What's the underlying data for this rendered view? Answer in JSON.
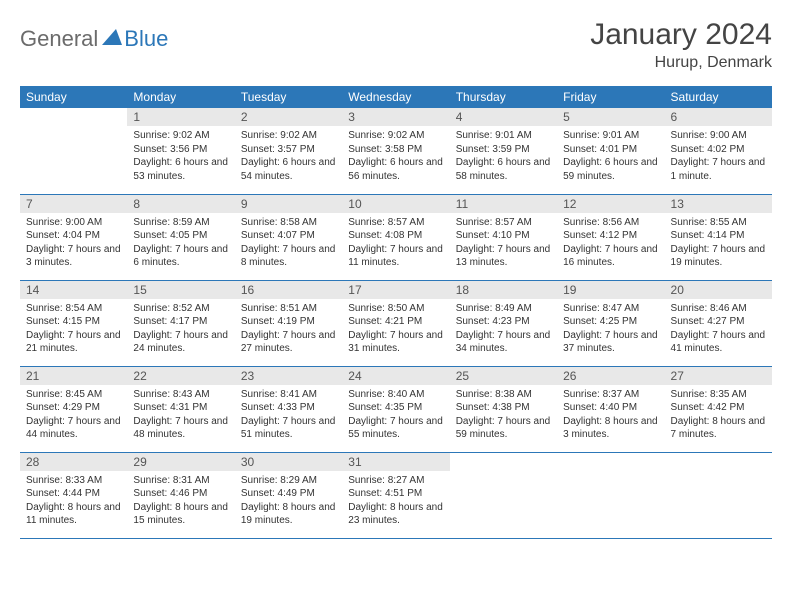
{
  "logo": {
    "text1": "General",
    "text2": "Blue"
  },
  "title": "January 2024",
  "location": "Hurup, Denmark",
  "colors": {
    "header_bg": "#2c77b8",
    "header_fg": "#ffffff",
    "daynum_bg": "#e8e8e8",
    "border": "#2c77b8",
    "logo_gray": "#6b6b6b",
    "logo_blue": "#2c77b8"
  },
  "weekdays": [
    "Sunday",
    "Monday",
    "Tuesday",
    "Wednesday",
    "Thursday",
    "Friday",
    "Saturday"
  ],
  "weeks": [
    [
      null,
      {
        "n": "1",
        "sr": "Sunrise: 9:02 AM",
        "ss": "Sunset: 3:56 PM",
        "dl": "Daylight: 6 hours and 53 minutes."
      },
      {
        "n": "2",
        "sr": "Sunrise: 9:02 AM",
        "ss": "Sunset: 3:57 PM",
        "dl": "Daylight: 6 hours and 54 minutes."
      },
      {
        "n": "3",
        "sr": "Sunrise: 9:02 AM",
        "ss": "Sunset: 3:58 PM",
        "dl": "Daylight: 6 hours and 56 minutes."
      },
      {
        "n": "4",
        "sr": "Sunrise: 9:01 AM",
        "ss": "Sunset: 3:59 PM",
        "dl": "Daylight: 6 hours and 58 minutes."
      },
      {
        "n": "5",
        "sr": "Sunrise: 9:01 AM",
        "ss": "Sunset: 4:01 PM",
        "dl": "Daylight: 6 hours and 59 minutes."
      },
      {
        "n": "6",
        "sr": "Sunrise: 9:00 AM",
        "ss": "Sunset: 4:02 PM",
        "dl": "Daylight: 7 hours and 1 minute."
      }
    ],
    [
      {
        "n": "7",
        "sr": "Sunrise: 9:00 AM",
        "ss": "Sunset: 4:04 PM",
        "dl": "Daylight: 7 hours and 3 minutes."
      },
      {
        "n": "8",
        "sr": "Sunrise: 8:59 AM",
        "ss": "Sunset: 4:05 PM",
        "dl": "Daylight: 7 hours and 6 minutes."
      },
      {
        "n": "9",
        "sr": "Sunrise: 8:58 AM",
        "ss": "Sunset: 4:07 PM",
        "dl": "Daylight: 7 hours and 8 minutes."
      },
      {
        "n": "10",
        "sr": "Sunrise: 8:57 AM",
        "ss": "Sunset: 4:08 PM",
        "dl": "Daylight: 7 hours and 11 minutes."
      },
      {
        "n": "11",
        "sr": "Sunrise: 8:57 AM",
        "ss": "Sunset: 4:10 PM",
        "dl": "Daylight: 7 hours and 13 minutes."
      },
      {
        "n": "12",
        "sr": "Sunrise: 8:56 AM",
        "ss": "Sunset: 4:12 PM",
        "dl": "Daylight: 7 hours and 16 minutes."
      },
      {
        "n": "13",
        "sr": "Sunrise: 8:55 AM",
        "ss": "Sunset: 4:14 PM",
        "dl": "Daylight: 7 hours and 19 minutes."
      }
    ],
    [
      {
        "n": "14",
        "sr": "Sunrise: 8:54 AM",
        "ss": "Sunset: 4:15 PM",
        "dl": "Daylight: 7 hours and 21 minutes."
      },
      {
        "n": "15",
        "sr": "Sunrise: 8:52 AM",
        "ss": "Sunset: 4:17 PM",
        "dl": "Daylight: 7 hours and 24 minutes."
      },
      {
        "n": "16",
        "sr": "Sunrise: 8:51 AM",
        "ss": "Sunset: 4:19 PM",
        "dl": "Daylight: 7 hours and 27 minutes."
      },
      {
        "n": "17",
        "sr": "Sunrise: 8:50 AM",
        "ss": "Sunset: 4:21 PM",
        "dl": "Daylight: 7 hours and 31 minutes."
      },
      {
        "n": "18",
        "sr": "Sunrise: 8:49 AM",
        "ss": "Sunset: 4:23 PM",
        "dl": "Daylight: 7 hours and 34 minutes."
      },
      {
        "n": "19",
        "sr": "Sunrise: 8:47 AM",
        "ss": "Sunset: 4:25 PM",
        "dl": "Daylight: 7 hours and 37 minutes."
      },
      {
        "n": "20",
        "sr": "Sunrise: 8:46 AM",
        "ss": "Sunset: 4:27 PM",
        "dl": "Daylight: 7 hours and 41 minutes."
      }
    ],
    [
      {
        "n": "21",
        "sr": "Sunrise: 8:45 AM",
        "ss": "Sunset: 4:29 PM",
        "dl": "Daylight: 7 hours and 44 minutes."
      },
      {
        "n": "22",
        "sr": "Sunrise: 8:43 AM",
        "ss": "Sunset: 4:31 PM",
        "dl": "Daylight: 7 hours and 48 minutes."
      },
      {
        "n": "23",
        "sr": "Sunrise: 8:41 AM",
        "ss": "Sunset: 4:33 PM",
        "dl": "Daylight: 7 hours and 51 minutes."
      },
      {
        "n": "24",
        "sr": "Sunrise: 8:40 AM",
        "ss": "Sunset: 4:35 PM",
        "dl": "Daylight: 7 hours and 55 minutes."
      },
      {
        "n": "25",
        "sr": "Sunrise: 8:38 AM",
        "ss": "Sunset: 4:38 PM",
        "dl": "Daylight: 7 hours and 59 minutes."
      },
      {
        "n": "26",
        "sr": "Sunrise: 8:37 AM",
        "ss": "Sunset: 4:40 PM",
        "dl": "Daylight: 8 hours and 3 minutes."
      },
      {
        "n": "27",
        "sr": "Sunrise: 8:35 AM",
        "ss": "Sunset: 4:42 PM",
        "dl": "Daylight: 8 hours and 7 minutes."
      }
    ],
    [
      {
        "n": "28",
        "sr": "Sunrise: 8:33 AM",
        "ss": "Sunset: 4:44 PM",
        "dl": "Daylight: 8 hours and 11 minutes."
      },
      {
        "n": "29",
        "sr": "Sunrise: 8:31 AM",
        "ss": "Sunset: 4:46 PM",
        "dl": "Daylight: 8 hours and 15 minutes."
      },
      {
        "n": "30",
        "sr": "Sunrise: 8:29 AM",
        "ss": "Sunset: 4:49 PM",
        "dl": "Daylight: 8 hours and 19 minutes."
      },
      {
        "n": "31",
        "sr": "Sunrise: 8:27 AM",
        "ss": "Sunset: 4:51 PM",
        "dl": "Daylight: 8 hours and 23 minutes."
      },
      null,
      null,
      null
    ]
  ]
}
